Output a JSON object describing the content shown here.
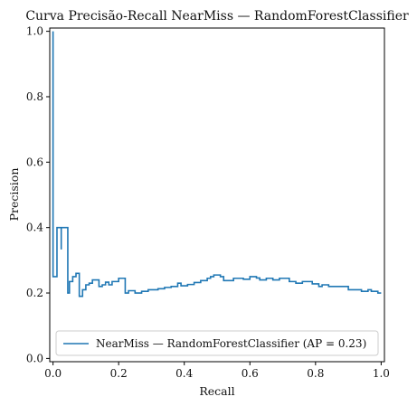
{
  "chart_data": {
    "type": "line",
    "step": "post",
    "title": "Curva Precisão-Recall NearMiss — RandomForestClassifier",
    "xlabel": "Recall",
    "ylabel": "Precision",
    "xlim": [
      -0.01,
      1.01
    ],
    "ylim": [
      -0.01,
      1.01
    ],
    "x_ticks": [
      0.0,
      0.2,
      0.4,
      0.6,
      0.8,
      1.0
    ],
    "x_tick_labels": [
      "0.0",
      "0.2",
      "0.4",
      "0.6",
      "0.8",
      "1.0"
    ],
    "y_ticks": [
      0.0,
      0.2,
      0.4,
      0.6,
      0.8,
      1.0
    ],
    "y_tick_labels": [
      "0.0",
      "0.2",
      "0.4",
      "0.6",
      "0.8",
      "1.0"
    ],
    "grid": false,
    "legend": {
      "position": "lower-right",
      "entries": [
        "NearMiss — RandomForestClassifier (AP = 0.23)"
      ]
    },
    "series": [
      {
        "name": "NearMiss — RandomForestClassifier (AP = 0.23)",
        "color": "#1f77b4",
        "points": [
          [
            0.0,
            1.0
          ],
          [
            0.0,
            0.25
          ],
          [
            0.012,
            0.25
          ],
          [
            0.012,
            0.4
          ],
          [
            0.025,
            0.4
          ],
          [
            0.025,
            0.333
          ],
          [
            0.025,
            0.4
          ],
          [
            0.045,
            0.4
          ],
          [
            0.045,
            0.2
          ],
          [
            0.05,
            0.2
          ],
          [
            0.05,
            0.235
          ],
          [
            0.06,
            0.235
          ],
          [
            0.06,
            0.25
          ],
          [
            0.07,
            0.25
          ],
          [
            0.07,
            0.26
          ],
          [
            0.08,
            0.26
          ],
          [
            0.08,
            0.19
          ],
          [
            0.09,
            0.19
          ],
          [
            0.09,
            0.21
          ],
          [
            0.1,
            0.21
          ],
          [
            0.1,
            0.225
          ],
          [
            0.11,
            0.225
          ],
          [
            0.11,
            0.23
          ],
          [
            0.12,
            0.23
          ],
          [
            0.12,
            0.24
          ],
          [
            0.14,
            0.24
          ],
          [
            0.14,
            0.22
          ],
          [
            0.15,
            0.22
          ],
          [
            0.15,
            0.225
          ],
          [
            0.16,
            0.225
          ],
          [
            0.16,
            0.233
          ],
          [
            0.17,
            0.233
          ],
          [
            0.17,
            0.225
          ],
          [
            0.18,
            0.225
          ],
          [
            0.18,
            0.235
          ],
          [
            0.2,
            0.235
          ],
          [
            0.2,
            0.245
          ],
          [
            0.22,
            0.245
          ],
          [
            0.22,
            0.2
          ],
          [
            0.23,
            0.2
          ],
          [
            0.23,
            0.207
          ],
          [
            0.25,
            0.207
          ],
          [
            0.25,
            0.2
          ],
          [
            0.27,
            0.2
          ],
          [
            0.27,
            0.205
          ],
          [
            0.29,
            0.205
          ],
          [
            0.29,
            0.21
          ],
          [
            0.32,
            0.21
          ],
          [
            0.32,
            0.213
          ],
          [
            0.34,
            0.213
          ],
          [
            0.34,
            0.217
          ],
          [
            0.36,
            0.217
          ],
          [
            0.36,
            0.22
          ],
          [
            0.38,
            0.22
          ],
          [
            0.38,
            0.23
          ],
          [
            0.39,
            0.23
          ],
          [
            0.39,
            0.222
          ],
          [
            0.41,
            0.222
          ],
          [
            0.41,
            0.226
          ],
          [
            0.43,
            0.226
          ],
          [
            0.43,
            0.232
          ],
          [
            0.45,
            0.232
          ],
          [
            0.45,
            0.238
          ],
          [
            0.47,
            0.238
          ],
          [
            0.47,
            0.245
          ],
          [
            0.48,
            0.245
          ],
          [
            0.48,
            0.25
          ],
          [
            0.49,
            0.25
          ],
          [
            0.49,
            0.255
          ],
          [
            0.51,
            0.255
          ],
          [
            0.51,
            0.25
          ],
          [
            0.52,
            0.25
          ],
          [
            0.52,
            0.238
          ],
          [
            0.55,
            0.238
          ],
          [
            0.55,
            0.245
          ],
          [
            0.58,
            0.245
          ],
          [
            0.58,
            0.242
          ],
          [
            0.6,
            0.242
          ],
          [
            0.6,
            0.25
          ],
          [
            0.62,
            0.25
          ],
          [
            0.62,
            0.246
          ],
          [
            0.63,
            0.246
          ],
          [
            0.63,
            0.24
          ],
          [
            0.65,
            0.24
          ],
          [
            0.65,
            0.245
          ],
          [
            0.67,
            0.245
          ],
          [
            0.67,
            0.24
          ],
          [
            0.69,
            0.24
          ],
          [
            0.69,
            0.245
          ],
          [
            0.72,
            0.245
          ],
          [
            0.72,
            0.235
          ],
          [
            0.74,
            0.235
          ],
          [
            0.74,
            0.23
          ],
          [
            0.76,
            0.23
          ],
          [
            0.76,
            0.235
          ],
          [
            0.79,
            0.235
          ],
          [
            0.79,
            0.228
          ],
          [
            0.81,
            0.228
          ],
          [
            0.81,
            0.22
          ],
          [
            0.82,
            0.22
          ],
          [
            0.82,
            0.225
          ],
          [
            0.84,
            0.225
          ],
          [
            0.84,
            0.22
          ],
          [
            0.9,
            0.22
          ],
          [
            0.9,
            0.21
          ],
          [
            0.94,
            0.21
          ],
          [
            0.94,
            0.205
          ],
          [
            0.96,
            0.205
          ],
          [
            0.96,
            0.21
          ],
          [
            0.97,
            0.21
          ],
          [
            0.97,
            0.205
          ],
          [
            0.99,
            0.205
          ],
          [
            0.99,
            0.2
          ],
          [
            1.0,
            0.2
          ]
        ]
      }
    ]
  }
}
